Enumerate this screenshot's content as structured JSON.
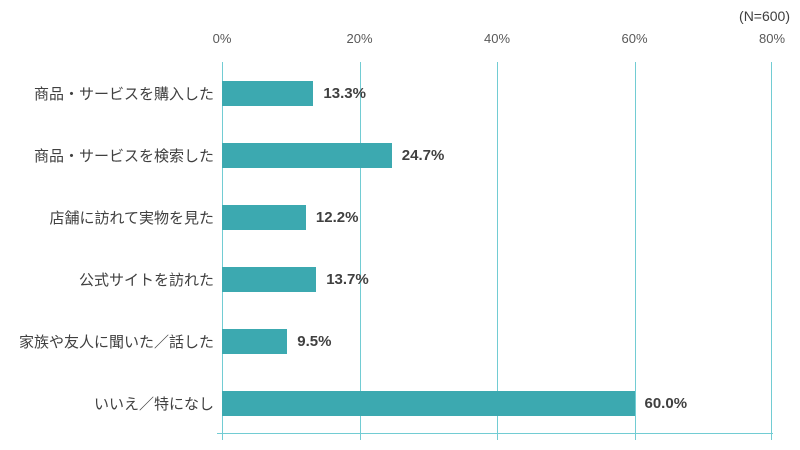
{
  "chart_data": {
    "type": "bar",
    "orientation": "horizontal",
    "title": "",
    "n_label": "(N=600)",
    "categories": [
      "商品・サービスを購入した",
      "商品・サービスを検索した",
      "店舗に訪れて実物を見た",
      "公式サイトを訪れた",
      "家族や友人に聞いた／話した",
      "いいえ／特になし"
    ],
    "values": [
      13.3,
      24.7,
      12.2,
      13.7,
      9.5,
      60.0
    ],
    "value_labels": [
      "13.3%",
      "24.7%",
      "12.2%",
      "13.7%",
      "9.5%",
      "60.0%"
    ],
    "x_ticks": [
      "0%",
      "20%",
      "40%",
      "60%",
      "80%"
    ],
    "xlim": [
      0,
      80
    ],
    "grid": true,
    "legend": "none",
    "bar_color": "#3CA9B0",
    "gridline_color": "#72CCD3",
    "text_color": "#404040",
    "tick_text_color": "#595959"
  }
}
